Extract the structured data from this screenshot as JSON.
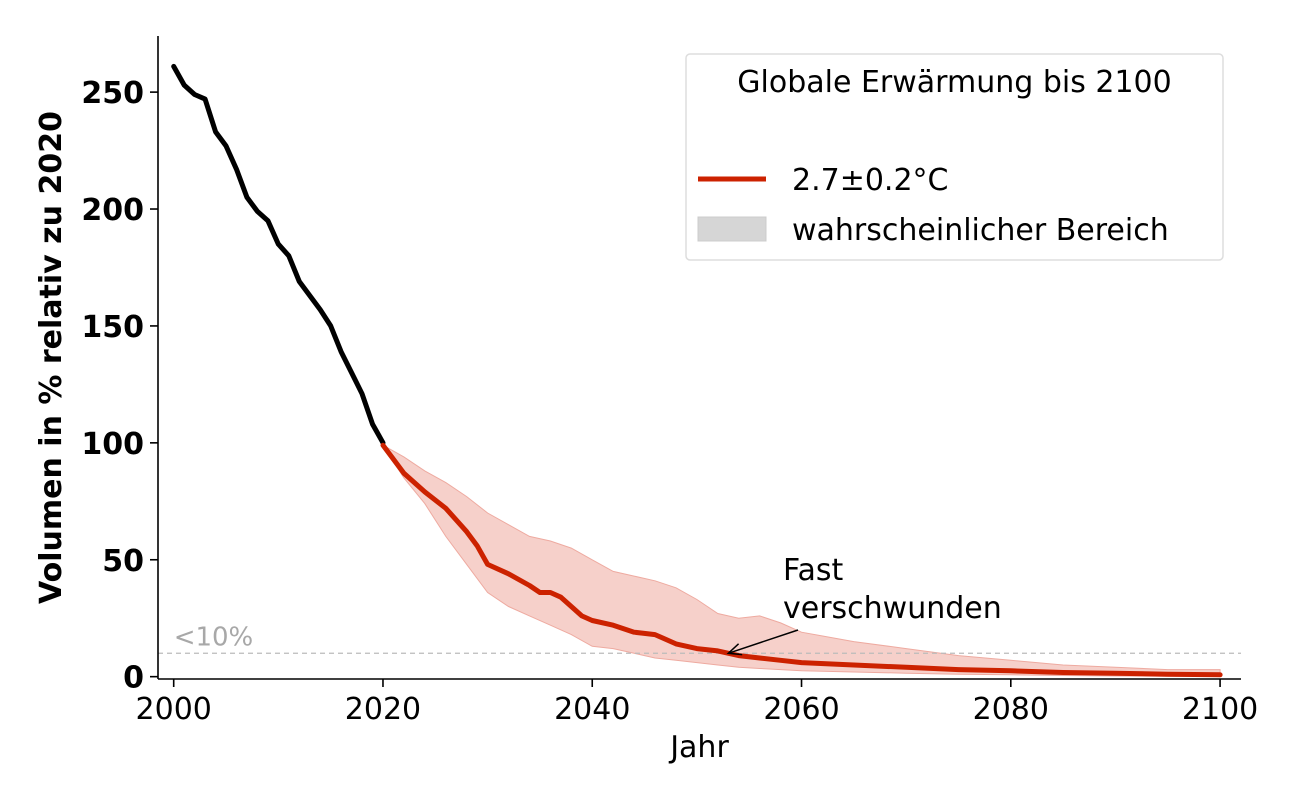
{
  "chart_data": {
    "type": "line",
    "xlabel": "Jahr",
    "ylabel": "Volumen in % relativ zu 2020",
    "xlim": [
      1998.5,
      2102
    ],
    "ylim": [
      -1,
      274
    ],
    "xticks": [
      2000,
      2020,
      2040,
      2060,
      2080,
      2100
    ],
    "yticks": [
      0,
      50,
      100,
      150,
      200,
      250
    ],
    "grid": false,
    "legend": {
      "title": "Globale Erwärmung bis 2100",
      "placement": "top-right",
      "entries": [
        "2.7±0.2°C",
        "wahrscheinlicher Bereich"
      ]
    },
    "series": [
      {
        "role": "observed",
        "color": "#000000",
        "x": [
          2000,
          2001,
          2002,
          2003,
          2004,
          2005,
          2006,
          2007,
          2008,
          2009,
          2010,
          2011,
          2012,
          2013,
          2014,
          2015,
          2016,
          2017,
          2018,
          2019,
          2020
        ],
        "y": [
          261,
          253,
          249,
          247,
          233,
          227,
          217,
          205,
          199,
          195,
          185,
          180,
          169,
          163,
          157,
          150,
          139,
          130,
          121,
          108,
          100
        ]
      },
      {
        "name": "2.7±0.2°C",
        "role": "projection",
        "color": "#cc2200",
        "x": [
          2020,
          2022,
          2024,
          2026,
          2028,
          2029,
          2030,
          2032,
          2034,
          2035,
          2036,
          2037,
          2038,
          2039,
          2040,
          2042,
          2044,
          2046,
          2048,
          2050,
          2052,
          2054,
          2056,
          2058,
          2060,
          2065,
          2070,
          2075,
          2080,
          2085,
          2090,
          2095,
          2100
        ],
        "y": [
          99,
          87,
          79,
          72,
          62,
          56,
          48,
          44,
          39,
          36,
          36,
          34,
          30,
          26,
          24,
          22,
          19,
          18,
          14,
          12,
          11,
          9,
          8,
          7,
          6,
          5,
          4,
          3,
          2.5,
          1.8,
          1.5,
          1.0,
          0.8
        ]
      }
    ],
    "band": {
      "name": "wahrscheinlicher Bereich",
      "color": "#f6d0ca",
      "x": [
        2020,
        2022,
        2024,
        2026,
        2028,
        2030,
        2032,
        2034,
        2036,
        2038,
        2040,
        2042,
        2044,
        2046,
        2048,
        2050,
        2052,
        2054,
        2056,
        2058,
        2060,
        2065,
        2070,
        2075,
        2080,
        2085,
        2090,
        2095,
        2100
      ],
      "upper": [
        99,
        94,
        88,
        83,
        77,
        70,
        65,
        60,
        58,
        55,
        50,
        45,
        43,
        41,
        38,
        33,
        27,
        25,
        26,
        23,
        19,
        15,
        12,
        9,
        7,
        5,
        4,
        3,
        3
      ],
      "lower": [
        99,
        85,
        74,
        60,
        48,
        36,
        30,
        26,
        22,
        18,
        13,
        12,
        10,
        8,
        7,
        6,
        5,
        4,
        3.5,
        3,
        2.5,
        2,
        1.5,
        1,
        0.8,
        0.5,
        0.3,
        0.2,
        0.1
      ]
    },
    "reference_line": {
      "y": 10,
      "label": "<10%",
      "color": "#bbbbbb"
    },
    "annotation": {
      "text_lines": [
        "Fast",
        "verschwunden"
      ],
      "x": 2053,
      "y": 10
    }
  }
}
